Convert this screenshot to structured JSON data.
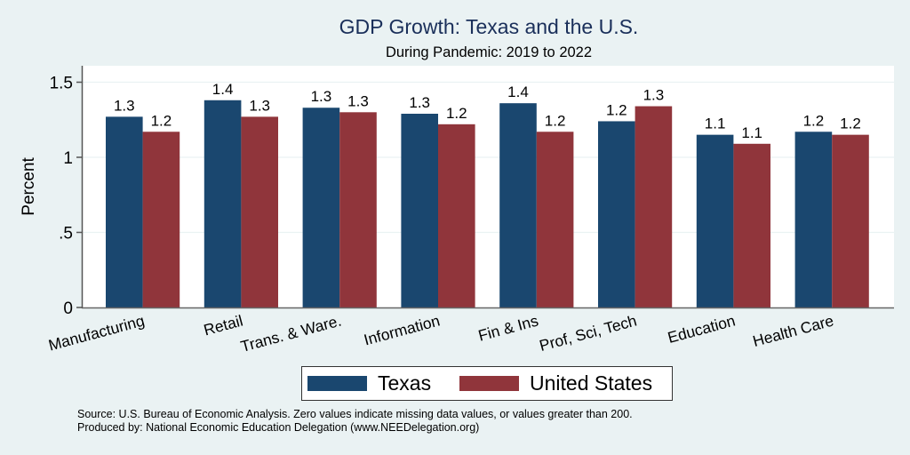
{
  "chart_data": {
    "type": "bar",
    "title": "GDP Growth: Texas and the U.S.",
    "subtitle": "During Pandemic: 2019 to 2022",
    "xlabel": "",
    "ylabel": "Percent",
    "ylim": [
      0,
      1.6
    ],
    "yticks": [
      0,
      0.5,
      1,
      1.5
    ],
    "ytick_labels": [
      "0",
      ".5",
      "1",
      "1.5"
    ],
    "grid": true,
    "legend_position": "bottom",
    "categories": [
      "Manufacturing",
      "Retail",
      "Trans. & Ware.",
      "Information",
      "Fin & Ins",
      "Prof, Sci, Tech",
      "Education",
      "Health Care"
    ],
    "series": [
      {
        "name": "Texas",
        "color": "#1a476f",
        "values": [
          1.27,
          1.38,
          1.33,
          1.29,
          1.36,
          1.24,
          1.15,
          1.17
        ],
        "labels": [
          "1.3",
          "1.4",
          "1.3",
          "1.3",
          "1.4",
          "1.2",
          "1.1",
          "1.2"
        ]
      },
      {
        "name": "United States",
        "color": "#90353b",
        "values": [
          1.17,
          1.27,
          1.3,
          1.22,
          1.17,
          1.34,
          1.09,
          1.15
        ],
        "labels": [
          "1.2",
          "1.3",
          "1.3",
          "1.2",
          "1.2",
          "1.3",
          "1.1",
          "1.2"
        ]
      }
    ],
    "notes": [
      "Source: U.S. Bureau of Economic Analysis. Zero values indicate missing data values, or values greater than 200.",
      "Produced by: National Economic Education Delegation (www.NEEDelegation.org)"
    ]
  }
}
